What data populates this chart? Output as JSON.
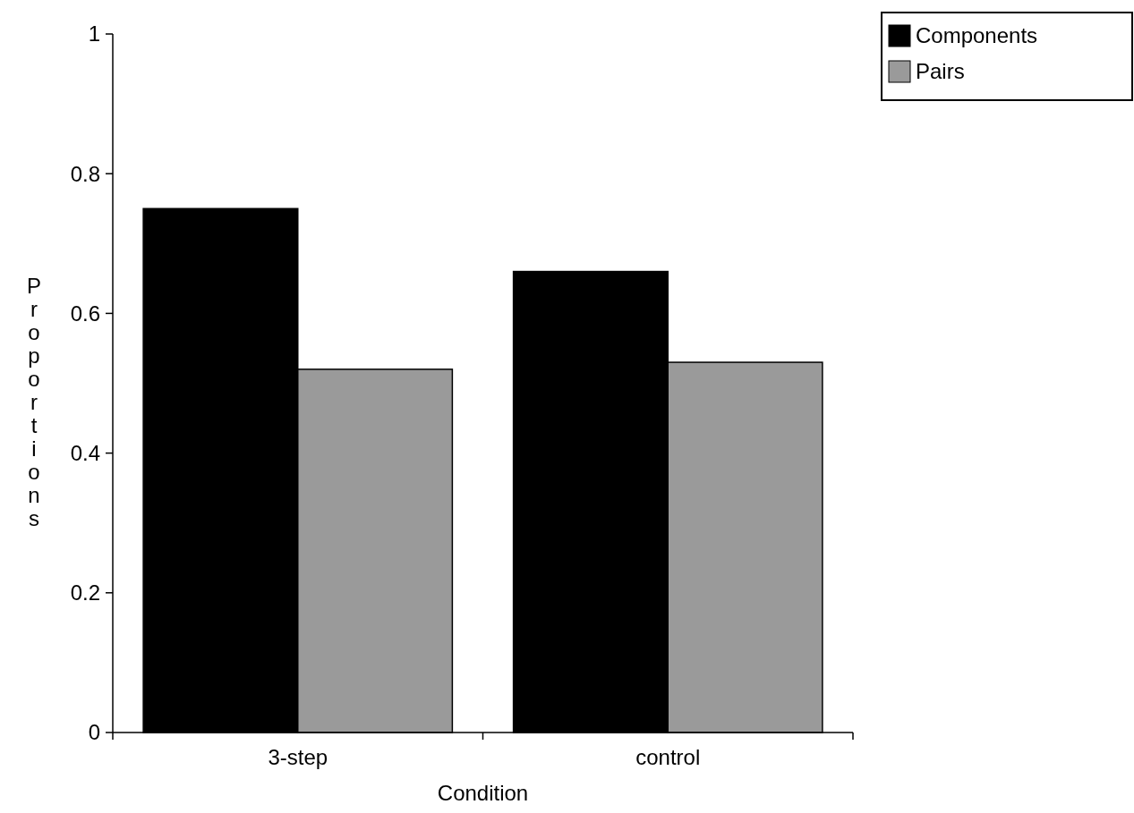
{
  "chart_data": {
    "type": "bar",
    "xlabel": "Condition",
    "ylabel": "Proportions",
    "categories": [
      "3-step",
      "control"
    ],
    "series": [
      {
        "name": "Components",
        "color": "#000000",
        "values": [
          0.75,
          0.66
        ]
      },
      {
        "name": "Pairs",
        "color": "#9a9a9a",
        "values": [
          0.52,
          0.53
        ]
      }
    ],
    "ylim": [
      0,
      1
    ],
    "yticks": [
      0,
      0.2,
      0.4,
      0.6,
      0.8,
      1
    ],
    "grid": false,
    "legend": "top right"
  }
}
